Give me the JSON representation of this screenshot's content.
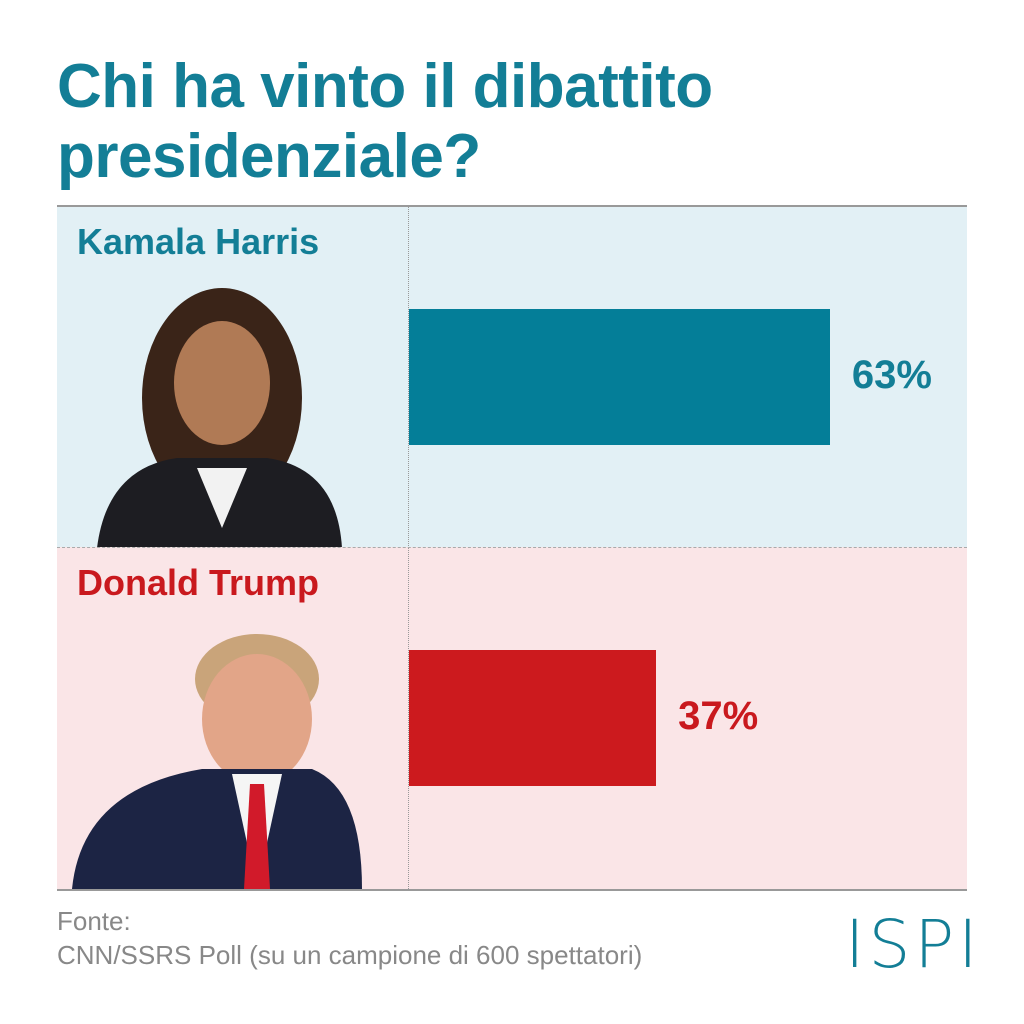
{
  "chart_data": {
    "type": "bar",
    "title": "Chi ha vinto il dibattito presidenziale?",
    "categories": [
      "Kamala Harris",
      "Donald Trump"
    ],
    "values": [
      63,
      37
    ],
    "value_labels": [
      "63%",
      "37%"
    ],
    "colors": [
      "#047e98",
      "#cc1a1e"
    ],
    "label_colors": [
      "#137e96",
      "#c9191e"
    ],
    "panel_colors": [
      "#e2f0f5",
      "#fae5e7"
    ],
    "xlim": [
      0,
      100
    ],
    "orientation": "horizontal"
  },
  "source": {
    "label": "Fonte:",
    "text": "CNN/SSRS Poll (su un campione di 600 spettatori)"
  },
  "logo": "ISPI"
}
